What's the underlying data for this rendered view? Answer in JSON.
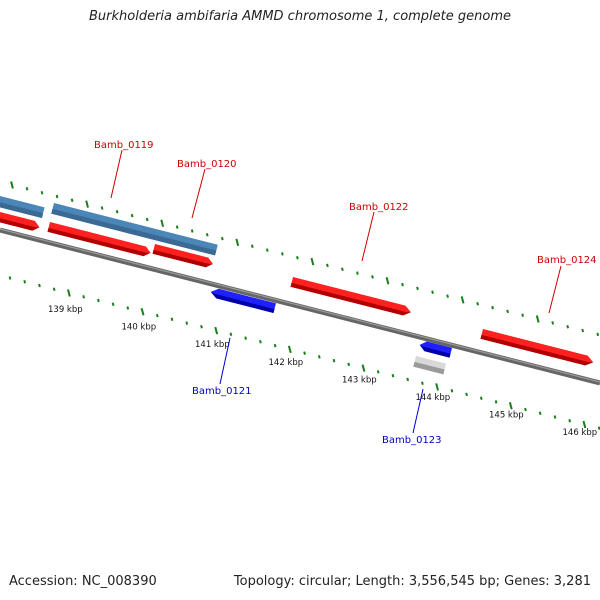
{
  "title": "Burkholderia ambifaria AMMD chromosome 1, complete genome",
  "footer": {
    "accession": "Accession: NC_008390",
    "summary": "Topology: circular; Length: 3,556,545 bp; Genes: 3,281"
  },
  "colors": {
    "forward_cds": "#ff0000",
    "reverse_cds": "#0000ff",
    "forward_label": "#cc0000",
    "reverse_label": "#0000cc",
    "blue_feature": "#4682b4",
    "grey_feature": "#bbbbbb",
    "backbone": "#777777",
    "tick": "#1a7f1a"
  },
  "axis": {
    "unit": "kbp",
    "labels": [
      "139 kbp",
      "140 kbp",
      "141 kbp",
      "142 kbp",
      "143 kbp",
      "144 kbp",
      "145 kbp",
      "146 kbp"
    ]
  },
  "genes": [
    {
      "name": "Bamb_0119",
      "strand": "forward"
    },
    {
      "name": "Bamb_0120",
      "strand": "forward"
    },
    {
      "name": "Bamb_0121",
      "strand": "reverse"
    },
    {
      "name": "Bamb_0122",
      "strand": "forward"
    },
    {
      "name": "Bamb_0123",
      "strand": "reverse"
    },
    {
      "name": "Bamb_0124",
      "strand": "forward"
    }
  ]
}
